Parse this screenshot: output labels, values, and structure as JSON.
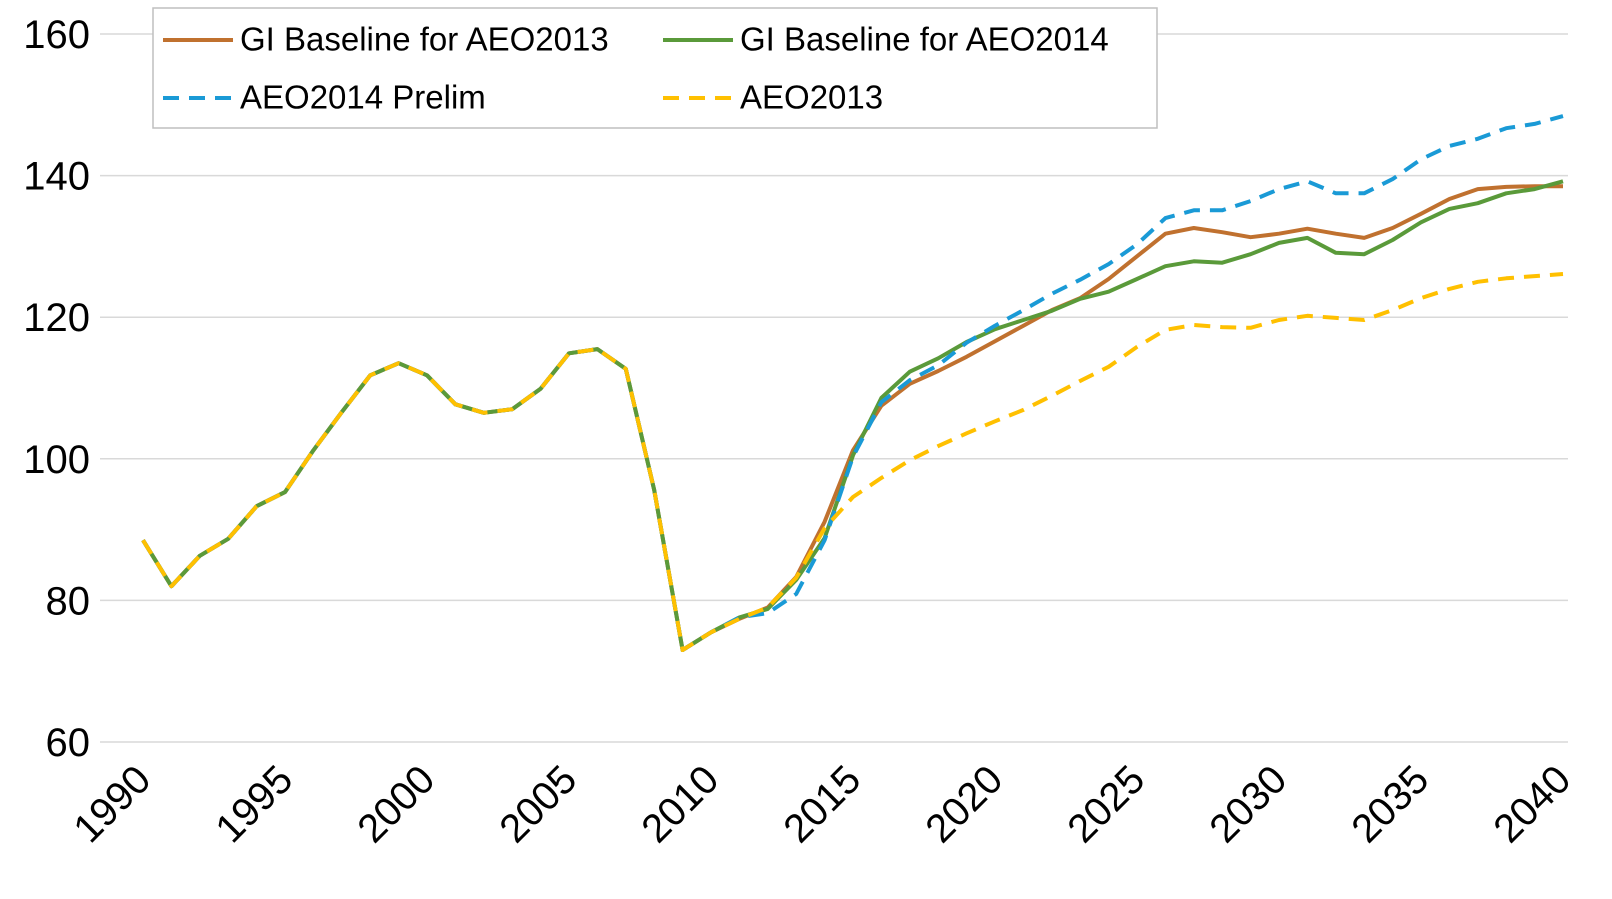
{
  "chart_data": {
    "type": "line",
    "x": [
      1990,
      1991,
      1992,
      1993,
      1994,
      1995,
      1996,
      1997,
      1998,
      1999,
      2000,
      2001,
      2002,
      2003,
      2004,
      2005,
      2006,
      2007,
      2008,
      2009,
      2010,
      2011,
      2012,
      2013,
      2014,
      2015,
      2016,
      2017,
      2018,
      2019,
      2020,
      2021,
      2022,
      2023,
      2024,
      2025,
      2026,
      2027,
      2028,
      2029,
      2030,
      2031,
      2032,
      2033,
      2034,
      2035,
      2036,
      2037,
      2038,
      2039,
      2040
    ],
    "xlim": [
      1990,
      2040
    ],
    "xticks": [
      1990,
      1995,
      2000,
      2005,
      2010,
      2015,
      2020,
      2025,
      2030,
      2035,
      2040
    ],
    "ylim": [
      60,
      160
    ],
    "yticks": [
      60,
      80,
      100,
      120,
      140,
      160
    ],
    "grid": true,
    "legend": "upper left",
    "series": [
      {
        "name": "GI Baseline for AEO2013",
        "color": "#c0712f",
        "style": "solid",
        "values": [
          88.5,
          82,
          86.3,
          88.7,
          93.3,
          95.3,
          101.2,
          106.6,
          111.8,
          113.5,
          111.8,
          107.7,
          106.5,
          107,
          109.9,
          114.9,
          115.5,
          112.7,
          95.6,
          73,
          75.5,
          77.4,
          79,
          83.3,
          91.1,
          101.2,
          107.5,
          110.6,
          112.4,
          114.4,
          116.6,
          118.8,
          121,
          122.7,
          125.4,
          128.6,
          131.8,
          132.6,
          132,
          131.3,
          131.8,
          132.5,
          131.8,
          131.2,
          132.6,
          134.6,
          136.7,
          138.1,
          138.4,
          138.5,
          138.5
        ]
      },
      {
        "name": "GI Baseline for AEO2014",
        "color": "#5a9a3a",
        "style": "solid",
        "values": [
          88.5,
          82,
          86.3,
          88.7,
          93.3,
          95.3,
          101.2,
          106.6,
          111.8,
          113.5,
          111.8,
          107.7,
          106.5,
          107,
          109.9,
          114.9,
          115.5,
          112.7,
          95.6,
          73,
          75.5,
          77.6,
          78.8,
          82.9,
          88.8,
          100.5,
          108.6,
          112.3,
          114.2,
          116.5,
          118.3,
          119.6,
          120.9,
          122.6,
          123.6,
          125.4,
          127.2,
          127.9,
          127.7,
          128.9,
          130.5,
          131.2,
          129.1,
          128.9,
          130.9,
          133.4,
          135.3,
          136.1,
          137.5,
          138.1,
          139.2
        ]
      },
      {
        "name": "AEO2014 Prelim",
        "color": "#1a9ad6",
        "style": "dashed",
        "values": [
          88.5,
          82,
          86.3,
          88.7,
          93.3,
          95.3,
          101.2,
          106.6,
          111.8,
          113.5,
          111.8,
          107.7,
          106.5,
          107,
          109.9,
          114.9,
          115.5,
          112.7,
          95.6,
          73,
          75.5,
          77.6,
          78.2,
          80.9,
          88.5,
          100.3,
          108,
          111.1,
          113.2,
          116.4,
          118.8,
          121,
          123.3,
          125.3,
          127.5,
          130.3,
          134,
          135.1,
          135.1,
          136.4,
          138.1,
          139.2,
          137.5,
          137.5,
          139.5,
          142.3,
          144.2,
          145.2,
          146.7,
          147.3,
          148.4
        ]
      },
      {
        "name": "AEO2013",
        "color": "#ffc000",
        "style": "dashed",
        "values": [
          88.5,
          82,
          86.3,
          88.7,
          93.3,
          95.3,
          101.2,
          106.6,
          111.8,
          113.5,
          111.8,
          107.7,
          106.5,
          107,
          109.9,
          114.9,
          115.5,
          112.7,
          95.6,
          73,
          75.5,
          77.4,
          79,
          83.2,
          90.2,
          94.6,
          97.3,
          99.8,
          101.8,
          103.6,
          105.3,
          106.9,
          108.9,
          111,
          113,
          115.8,
          118.2,
          118.9,
          118.6,
          118.5,
          119.6,
          120.2,
          119.9,
          119.6,
          121,
          122.7,
          124,
          125,
          125.5,
          125.8,
          126.1
        ]
      }
    ]
  }
}
